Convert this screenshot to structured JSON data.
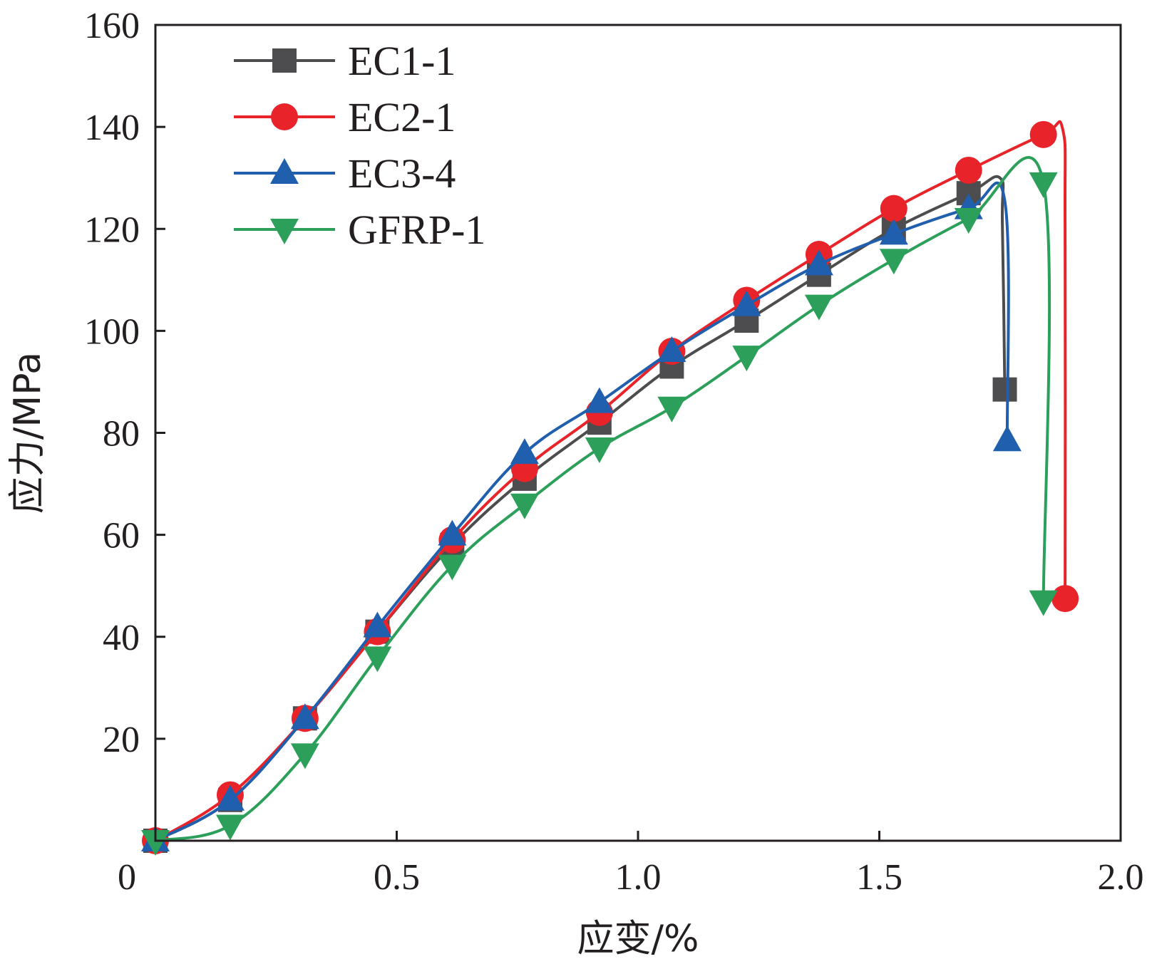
{
  "chart_data": {
    "type": "line",
    "title": "",
    "xlabel": "应变/%",
    "ylabel": "应力/MPa",
    "xlim": [
      0,
      2.0
    ],
    "ylim": [
      0,
      160
    ],
    "xticks": [
      0,
      0.5,
      1.0,
      1.5,
      2.0
    ],
    "xtick_labels": [
      "0",
      "0.5",
      "1.0",
      "1.5",
      "2.0"
    ],
    "yticks": [
      20,
      40,
      60,
      80,
      100,
      120,
      140,
      160
    ],
    "ytick_labels": [
      "20",
      "40",
      "60",
      "80",
      "100",
      "120",
      "140",
      "160"
    ],
    "grid": false,
    "legend_position": "top-left",
    "series": [
      {
        "name": "EC1-1",
        "color": "#4d4d4f",
        "marker": "square",
        "x": [
          0,
          0.155,
          0.31,
          0.46,
          0.615,
          0.765,
          0.92,
          1.07,
          1.225,
          1.375,
          1.53,
          1.685,
          1.75,
          1.755,
          1.76
        ],
        "y": [
          0,
          8,
          24,
          41,
          58,
          71,
          82,
          93,
          102,
          111,
          120,
          127,
          130,
          121,
          88.5
        ],
        "markers_x": [
          0,
          0.155,
          0.31,
          0.46,
          0.615,
          0.765,
          0.92,
          1.07,
          1.225,
          1.375,
          1.53,
          1.685,
          1.76
        ],
        "markers_y": [
          0,
          8,
          24,
          41,
          58,
          71,
          82,
          93,
          102,
          111,
          120,
          127,
          88.5
        ]
      },
      {
        "name": "EC2-1",
        "color": "#e8242a",
        "marker": "circle",
        "x": [
          0,
          0.155,
          0.31,
          0.46,
          0.615,
          0.765,
          0.92,
          1.07,
          1.225,
          1.375,
          1.53,
          1.685,
          1.84,
          1.88,
          1.885,
          1.885
        ],
        "y": [
          0,
          9,
          24,
          41,
          59,
          73,
          84,
          96,
          106,
          115,
          124,
          131.5,
          138.5,
          139.5,
          120,
          47.5
        ],
        "markers_x": [
          0,
          0.155,
          0.31,
          0.46,
          0.615,
          0.765,
          0.92,
          1.07,
          1.225,
          1.375,
          1.53,
          1.685,
          1.84,
          1.885
        ],
        "markers_y": [
          0,
          9,
          24,
          41,
          59,
          73,
          84,
          96,
          106,
          115,
          124,
          131.5,
          138.5,
          47.5
        ]
      },
      {
        "name": "EC3-4",
        "color": "#1f5fad",
        "marker": "triangle-up",
        "x": [
          0,
          0.155,
          0.31,
          0.46,
          0.615,
          0.765,
          0.92,
          1.07,
          1.225,
          1.375,
          1.53,
          1.685,
          1.76,
          1.765
        ],
        "y": [
          0,
          8,
          24,
          42,
          60,
          76,
          86,
          96,
          105,
          113,
          119,
          124,
          125.5,
          78.5
        ],
        "markers_x": [
          0,
          0.155,
          0.31,
          0.46,
          0.615,
          0.765,
          0.92,
          1.07,
          1.225,
          1.375,
          1.53,
          1.685,
          1.765
        ],
        "markers_y": [
          0,
          8,
          24,
          42,
          60,
          76,
          86,
          96,
          105,
          113,
          119,
          124,
          78.5
        ]
      },
      {
        "name": "GFRP-1",
        "color": "#2ca05a",
        "marker": "triangle-down",
        "x": [
          0,
          0.155,
          0.31,
          0.46,
          0.615,
          0.765,
          0.92,
          1.07,
          1.225,
          1.375,
          1.53,
          1.685,
          1.84,
          1.84
        ],
        "y": [
          0,
          3,
          17,
          36,
          54,
          66,
          77,
          85,
          95,
          105,
          114,
          122,
          129,
          47
        ],
        "markers_x": [
          0,
          0.155,
          0.31,
          0.46,
          0.615,
          0.765,
          0.92,
          1.07,
          1.225,
          1.375,
          1.53,
          1.685,
          1.84,
          1.84
        ],
        "markers_y": [
          0,
          3,
          17,
          36,
          54,
          66,
          77,
          85,
          95,
          105,
          114,
          122,
          129,
          47
        ]
      }
    ]
  }
}
